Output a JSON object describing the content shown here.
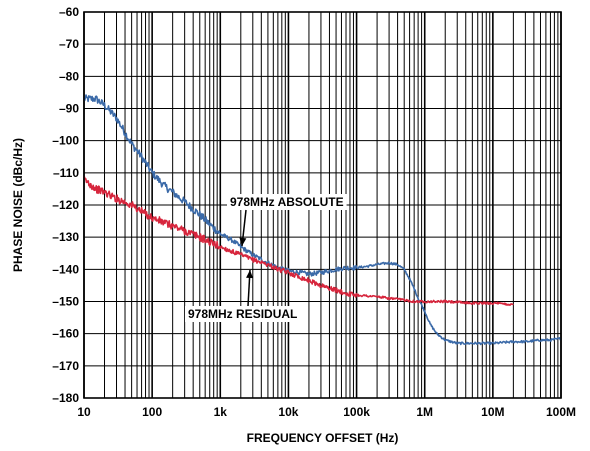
{
  "chart_data": {
    "type": "line",
    "xlabel": "FREQUENCY OFFSET (Hz)",
    "ylabel": "PHASE NOISE (dBc/Hz)",
    "x_scale": "log",
    "xlim": [
      10,
      100000000
    ],
    "ylim": [
      -180,
      -60
    ],
    "grid": true,
    "x_ticks": [
      {
        "value": 10,
        "label": "10"
      },
      {
        "value": 100,
        "label": "100"
      },
      {
        "value": 1000,
        "label": "1k"
      },
      {
        "value": 10000,
        "label": "10k"
      },
      {
        "value": 100000,
        "label": "100k"
      },
      {
        "value": 1000000,
        "label": "1M"
      },
      {
        "value": 10000000,
        "label": "10M"
      },
      {
        "value": 100000000,
        "label": "100M"
      }
    ],
    "y_ticks": [
      {
        "value": -60,
        "label": "–60"
      },
      {
        "value": -70,
        "label": "–70"
      },
      {
        "value": -80,
        "label": "–80"
      },
      {
        "value": -90,
        "label": "–90"
      },
      {
        "value": -100,
        "label": "–100"
      },
      {
        "value": -110,
        "label": "–110"
      },
      {
        "value": -120,
        "label": "–120"
      },
      {
        "value": -130,
        "label": "–130"
      },
      {
        "value": -140,
        "label": "–140"
      },
      {
        "value": -150,
        "label": "–150"
      },
      {
        "value": -160,
        "label": "–160"
      },
      {
        "value": -170,
        "label": "–170"
      },
      {
        "value": -180,
        "label": "–180"
      }
    ],
    "series": [
      {
        "name": "978MHz ABSOLUTE",
        "color": "#3b6aa8",
        "x": [
          10,
          15,
          20,
          30,
          50,
          70,
          100,
          150,
          200,
          300,
          500,
          700,
          1000,
          1500,
          2000,
          3000,
          5000,
          7000,
          10000,
          15000,
          20000,
          30000,
          50000,
          70000,
          100000,
          150000,
          200000,
          300000,
          400000,
          500000,
          600000,
          700000,
          800000,
          1000000,
          1200000,
          1500000,
          2000000,
          3000000,
          5000000,
          7000000,
          10000000,
          20000000,
          30000000,
          50000000,
          70000000,
          100000000
        ],
        "y": [
          -87,
          -87,
          -89,
          -93,
          -101,
          -105,
          -110,
          -114,
          -116,
          -119,
          -123,
          -126,
          -129,
          -131,
          -133,
          -135.5,
          -138,
          -139.5,
          -140.5,
          -141,
          -141.5,
          -141,
          -140,
          -139.5,
          -139.5,
          -139,
          -138.5,
          -138,
          -138.5,
          -140,
          -143,
          -146,
          -149,
          -153,
          -157,
          -160,
          -162,
          -163,
          -163,
          -163,
          -163,
          -162.5,
          -162.5,
          -162,
          -162,
          -161.5
        ]
      },
      {
        "name": "978MHz RESIDUAL",
        "color": "#d7263d",
        "x": [
          10,
          15,
          20,
          30,
          50,
          70,
          100,
          150,
          200,
          300,
          500,
          700,
          1000,
          1500,
          2000,
          3000,
          5000,
          7000,
          10000,
          15000,
          20000,
          30000,
          50000,
          70000,
          100000,
          200000,
          300000,
          500000,
          700000,
          1000000,
          2000000,
          5000000,
          10000000,
          20000000
        ],
        "y": [
          -112,
          -115,
          -116,
          -118,
          -120,
          -122,
          -124,
          -125.5,
          -126.5,
          -128,
          -130,
          -131.5,
          -133,
          -134.5,
          -135.5,
          -137,
          -138.5,
          -140,
          -141,
          -142.5,
          -143.5,
          -145,
          -146.5,
          -147.5,
          -148,
          -148.5,
          -149,
          -149.5,
          -150,
          -150,
          -150,
          -150.5,
          -150.5,
          -151
        ]
      }
    ],
    "annotations": [
      {
        "text": "978MHz ABSOLUTE",
        "series": 0,
        "x": 2500
      },
      {
        "text": "978MHz RESIDUAL",
        "series": 1,
        "x": 3000
      }
    ]
  }
}
